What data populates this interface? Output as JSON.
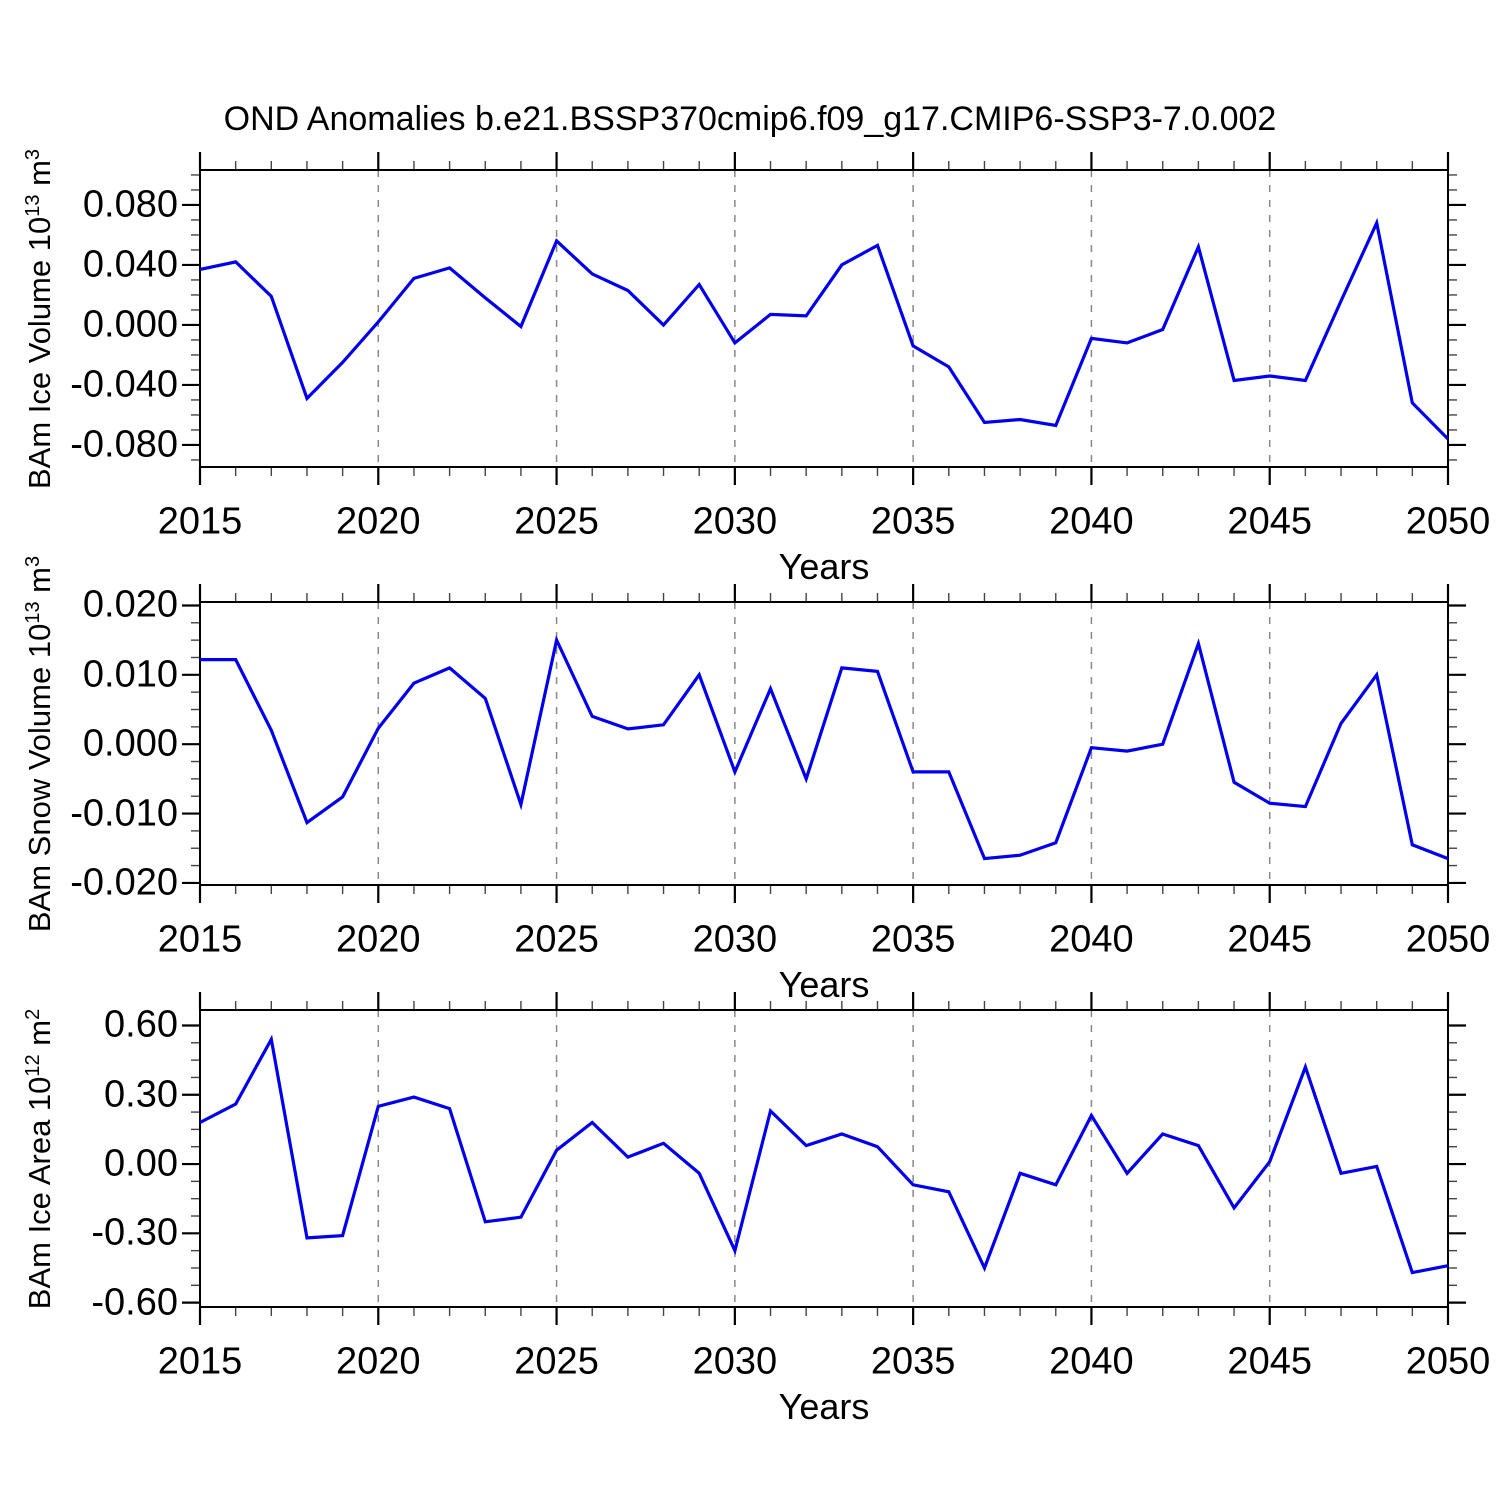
{
  "title": "OND Anomalies b.e21.BSSP370cmip6.f09_g17.CMIP6-SSP3-7.0.002",
  "xlabel": "Years",
  "line_color": "#0000EE",
  "grid_color": "#888888",
  "grid_years": [
    2020,
    2025,
    2030,
    2035,
    2040,
    2045
  ],
  "x_years": [
    2015,
    2016,
    2017,
    2018,
    2019,
    2020,
    2021,
    2022,
    2023,
    2024,
    2025,
    2026,
    2027,
    2028,
    2029,
    2030,
    2031,
    2032,
    2033,
    2034,
    2035,
    2036,
    2037,
    2038,
    2039,
    2040,
    2041,
    2042,
    2043,
    2044,
    2045,
    2046,
    2047,
    2048,
    2049,
    2050
  ],
  "x_major_ticks": [
    2015,
    2020,
    2025,
    2030,
    2035,
    2040,
    2045,
    2050
  ],
  "x_tick_labels": [
    "2015",
    "2020",
    "2025",
    "2030",
    "2035",
    "2040",
    "2045",
    "2050"
  ],
  "chart_data": [
    {
      "type": "line",
      "name": "bam-ice-volume",
      "ylabel_segments": [
        {
          "t": "BAm Ice Volume 10"
        },
        {
          "t": "13",
          "sup": true
        },
        {
          "t": " m"
        },
        {
          "t": "3",
          "sup": true
        }
      ],
      "ylabel_text": "BAm Ice Volume 10^13 m^3",
      "xlabel": "Years",
      "ylim": [
        -0.0947,
        0.1033
      ],
      "ytick_major": [
        {
          "v": 0.08,
          "label": "0.080"
        },
        {
          "v": 0.04,
          "label": "0.040"
        },
        {
          "v": 0.0,
          "label": "0.000"
        },
        {
          "v": -0.04,
          "label": "-0.040"
        },
        {
          "v": -0.08,
          "label": "-0.080"
        }
      ],
      "ytick_minor_step": 0.01,
      "ytick_major_step": 0.04,
      "values": [
        0.037,
        0.042,
        0.019,
        -0.049,
        -0.025,
        0.002,
        0.031,
        0.038,
        0.018,
        -0.001,
        0.056,
        0.034,
        0.023,
        0.0,
        0.027,
        -0.012,
        0.007,
        0.006,
        0.04,
        0.053,
        -0.014,
        -0.028,
        -0.065,
        -0.063,
        -0.067,
        -0.009,
        -0.012,
        -0.003,
        0.052,
        -0.037,
        -0.034,
        -0.037,
        0.016,
        0.068,
        -0.052,
        -0.076
      ]
    },
    {
      "type": "line",
      "name": "bam-snow-volume",
      "ylabel_segments": [
        {
          "t": "BAm Snow Volume 10"
        },
        {
          "t": "13",
          "sup": true
        },
        {
          "t": " m"
        },
        {
          "t": "3",
          "sup": true
        }
      ],
      "ylabel_text": "BAm Snow Volume 10^13 m^3",
      "xlabel": "Years",
      "ylim": [
        -0.0203,
        0.0205
      ],
      "ytick_major": [
        {
          "v": 0.02,
          "label": "0.020"
        },
        {
          "v": 0.01,
          "label": "0.010"
        },
        {
          "v": 0.0,
          "label": "0.000"
        },
        {
          "v": -0.01,
          "label": "-0.010"
        },
        {
          "v": -0.02,
          "label": "-0.020"
        }
      ],
      "ytick_minor_step": 0.0025,
      "ytick_major_step": 0.01,
      "values": [
        0.0122,
        0.0122,
        0.002,
        -0.0113,
        -0.0076,
        0.0023,
        0.0088,
        0.011,
        0.0066,
        -0.0087,
        0.015,
        0.004,
        0.0022,
        0.0028,
        0.01,
        -0.004,
        0.008,
        -0.005,
        0.011,
        0.0105,
        -0.004,
        -0.004,
        -0.0165,
        -0.016,
        -0.0142,
        -0.0005,
        -0.001,
        0.0,
        0.0145,
        -0.0055,
        -0.0085,
        -0.009,
        0.003,
        0.01,
        -0.0145,
        -0.0165
      ]
    },
    {
      "type": "line",
      "name": "bam-ice-area",
      "ylabel_segments": [
        {
          "t": "BAm Ice Area 10"
        },
        {
          "t": "12",
          "sup": true
        },
        {
          "t": " m"
        },
        {
          "t": "2",
          "sup": true
        }
      ],
      "ylabel_text": "BAm Ice Area 10^12 m^2",
      "xlabel": "Years",
      "ylim": [
        -0.619,
        0.667
      ],
      "ytick_major": [
        {
          "v": 0.6,
          "label": "0.60"
        },
        {
          "v": 0.3,
          "label": "0.30"
        },
        {
          "v": 0.0,
          "label": "0.00"
        },
        {
          "v": -0.3,
          "label": "-0.30"
        },
        {
          "v": -0.6,
          "label": "-0.60"
        }
      ],
      "ytick_minor_step": 0.075,
      "ytick_major_step": 0.3,
      "values": [
        0.18,
        0.26,
        0.54,
        -0.32,
        -0.31,
        0.25,
        0.29,
        0.24,
        -0.25,
        -0.23,
        0.06,
        0.18,
        0.03,
        0.09,
        -0.04,
        -0.375,
        0.23,
        0.08,
        0.13,
        0.075,
        -0.09,
        -0.12,
        -0.45,
        -0.04,
        -0.09,
        0.21,
        -0.04,
        0.13,
        0.08,
        -0.19,
        0.01,
        0.42,
        -0.04,
        -0.01,
        -0.47,
        -0.44
      ]
    }
  ]
}
